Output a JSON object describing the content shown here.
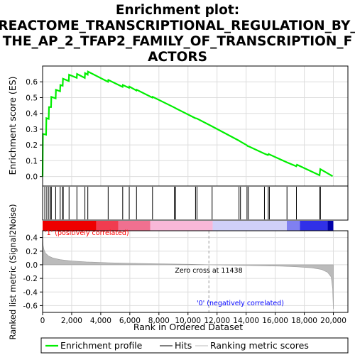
{
  "chart_data": {
    "type": "line",
    "title_lines": [
      "Enrichment plot:",
      "REACTOME_TRANSCRIPTIONAL_REGULATION_BY_",
      "THE_AP_2_TFAP2_FAMILY_OF_TRANSCRIPTION_F",
      "ACTORS"
    ],
    "es_panel": {
      "ylabel": "Enrichment score (ES)",
      "ylim": [
        -0.06,
        0.7
      ],
      "yticks": [
        "0.0",
        "0.1",
        "0.2",
        "0.3",
        "0.4",
        "0.5",
        "0.6"
      ],
      "ytick_values": [
        0.0,
        0.1,
        0.2,
        0.3,
        0.4,
        0.5,
        0.6
      ],
      "grid": true,
      "line_color": "#00ee00",
      "series_points": [
        [
          0,
          0.0
        ],
        [
          20,
          0.27
        ],
        [
          240,
          0.265
        ],
        [
          260,
          0.37
        ],
        [
          420,
          0.365
        ],
        [
          440,
          0.44
        ],
        [
          580,
          0.44
        ],
        [
          600,
          0.505
        ],
        [
          900,
          0.495
        ],
        [
          920,
          0.55
        ],
        [
          1200,
          0.54
        ],
        [
          1220,
          0.58
        ],
        [
          1380,
          0.575
        ],
        [
          1400,
          0.62
        ],
        [
          1800,
          0.605
        ],
        [
          1820,
          0.645
        ],
        [
          2350,
          0.625
        ],
        [
          2370,
          0.65
        ],
        [
          2900,
          0.625
        ],
        [
          2920,
          0.655
        ],
        [
          3100,
          0.645
        ],
        [
          3120,
          0.665
        ],
        [
          4500,
          0.6
        ],
        [
          4520,
          0.612
        ],
        [
          5500,
          0.568
        ],
        [
          5520,
          0.58
        ],
        [
          5950,
          0.562
        ],
        [
          5970,
          0.57
        ],
        [
          6450,
          0.545
        ],
        [
          6470,
          0.55
        ],
        [
          7550,
          0.5
        ],
        [
          7570,
          0.505
        ],
        [
          9050,
          0.438
        ],
        [
          9200,
          0.43
        ],
        [
          10500,
          0.37
        ],
        [
          10600,
          0.368
        ],
        [
          11650,
          0.318
        ],
        [
          13500,
          0.228
        ],
        [
          13600,
          0.222
        ],
        [
          14050,
          0.198
        ],
        [
          14100,
          0.193
        ],
        [
          14200,
          0.19
        ],
        [
          15250,
          0.145
        ],
        [
          15500,
          0.136
        ],
        [
          15550,
          0.143
        ],
        [
          15600,
          0.14
        ],
        [
          16800,
          0.09
        ],
        [
          17450,
          0.065
        ],
        [
          17500,
          0.075
        ],
        [
          19050,
          0.008
        ],
        [
          19100,
          0.047
        ],
        [
          19950,
          0.002
        ]
      ]
    },
    "hits": [
      150,
      290,
      430,
      560,
      600,
      900,
      1210,
      1380,
      1420,
      1820,
      2360,
      2910,
      3110,
      4510,
      5510,
      5960,
      6460,
      7560,
      9060,
      9150,
      10520,
      10620,
      11660,
      13510,
      13610,
      14060,
      14150,
      15260,
      15520,
      15600,
      16810,
      17460,
      19070,
      19110
    ],
    "rank_panel": {
      "ylabel": "Ranked list metric (Signal2Noise)",
      "ylim": [
        -0.7,
        0.5
      ],
      "yticks": [
        "0.4",
        "0.2",
        "0.0",
        "-0.2",
        "-0.4",
        "-0.6"
      ],
      "ytick_values": [
        0.4,
        0.2,
        0.0,
        -0.2,
        -0.4,
        -0.6
      ],
      "metric_curve": [
        [
          0,
          0.46
        ],
        [
          40,
          0.28
        ],
        [
          100,
          0.22
        ],
        [
          200,
          0.17
        ],
        [
          400,
          0.13
        ],
        [
          700,
          0.1
        ],
        [
          1200,
          0.075
        ],
        [
          2000,
          0.055
        ],
        [
          3000,
          0.042
        ],
        [
          4500,
          0.03
        ],
        [
          6000,
          0.022
        ],
        [
          8000,
          0.014
        ],
        [
          10000,
          0.007
        ],
        [
          11438,
          0.0
        ],
        [
          13000,
          -0.006
        ],
        [
          15000,
          -0.014
        ],
        [
          16500,
          -0.022
        ],
        [
          17500,
          -0.03
        ],
        [
          18500,
          -0.045
        ],
        [
          19200,
          -0.07
        ],
        [
          19600,
          -0.11
        ],
        [
          19850,
          -0.18
        ],
        [
          19950,
          -0.35
        ],
        [
          20000,
          -0.65
        ]
      ],
      "zero_cross_label": "Zero cross at 11438",
      "zero_cross_x": 11438,
      "positive_label": "'1' (positively correlated)",
      "negative_label": "'0' (negatively correlated)",
      "positive_color": "#ff0000",
      "negative_color": "#0000ff"
    },
    "x_axis": {
      "xlabel": "Rank in Ordered Dataset",
      "xlim": [
        0,
        21000
      ],
      "xticks": [
        "0",
        "2,000",
        "4,000",
        "6,000",
        "8,000",
        "10,000",
        "12,000",
        "14,000",
        "16,000",
        "18,000",
        "20,000"
      ],
      "xtick_values": [
        0,
        2000,
        4000,
        6000,
        8000,
        10000,
        12000,
        14000,
        16000,
        18000,
        20000
      ]
    },
    "color_bar": [
      {
        "from": 0,
        "to": 3700,
        "color": "#ee0000"
      },
      {
        "from": 3700,
        "to": 5200,
        "color": "#f03c50"
      },
      {
        "from": 5200,
        "to": 7400,
        "color": "#f07090"
      },
      {
        "from": 7400,
        "to": 11700,
        "color": "#f8b8d8"
      },
      {
        "from": 11700,
        "to": 16800,
        "color": "#d0d0f8"
      },
      {
        "from": 16800,
        "to": 17700,
        "color": "#8080f0"
      },
      {
        "from": 17700,
        "to": 19600,
        "color": "#3030e8"
      },
      {
        "from": 19600,
        "to": 20000,
        "color": "#0000aa"
      }
    ],
    "legend": {
      "placement": "bottom",
      "items": [
        {
          "label": "Enrichment profile",
          "color": "#00ee00"
        },
        {
          "label": "Hits",
          "color": "#000000"
        },
        {
          "label": "Ranking metric scores",
          "color": "#bbbbbb"
        }
      ]
    }
  }
}
